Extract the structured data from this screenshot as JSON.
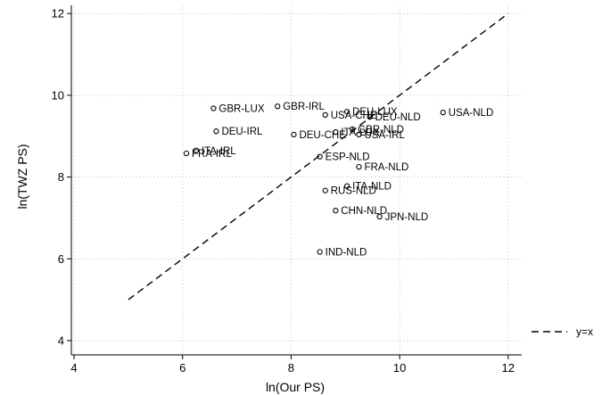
{
  "chart_data": {
    "type": "scatter",
    "title": "",
    "xlabel": "ln(Our PS)",
    "ylabel": "ln(TWZ PS)",
    "xlim": [
      3.95,
      12.25
    ],
    "ylim": [
      3.65,
      12.2
    ],
    "xticks": [
      4,
      6,
      8,
      10,
      12
    ],
    "yticks": [
      4,
      6,
      8,
      10,
      12
    ],
    "xtick_labels": [
      "4",
      "6",
      "8",
      "10",
      "12"
    ],
    "ytick_labels": [
      "4",
      "6",
      "8",
      "10",
      "12"
    ],
    "grid": true,
    "points": [
      {
        "label": "GBR-LUX",
        "x": 6.57,
        "y": 9.68
      },
      {
        "label": "GBR-IRL",
        "x": 7.75,
        "y": 9.73
      },
      {
        "label": "DEU-LUX",
        "x": 9.03,
        "y": 9.6
      },
      {
        "label": "USA-CHE",
        "x": 8.63,
        "y": 9.52
      },
      {
        "label": "DEU-NLD",
        "x": 9.45,
        "y": 9.47
      },
      {
        "label": "USA-NLD",
        "x": 10.8,
        "y": 9.58
      },
      {
        "label": "DEU-IRL",
        "x": 6.62,
        "y": 9.12
      },
      {
        "label": "DEU-CHE",
        "x": 8.05,
        "y": 9.04
      },
      {
        "label": "ITA-LUX",
        "x": 8.82,
        "y": 9.1
      },
      {
        "label": "GBR-NLD",
        "x": 9.13,
        "y": 9.17
      },
      {
        "label": "USA-IRL",
        "x": 9.25,
        "y": 9.04
      },
      {
        "label": "ITA-IRL",
        "x": 6.25,
        "y": 8.65
      },
      {
        "label": "FRA-IRL",
        "x": 6.07,
        "y": 8.58
      },
      {
        "label": "ESP-NLD",
        "x": 8.53,
        "y": 8.5
      },
      {
        "label": "FRA-NLD",
        "x": 9.25,
        "y": 8.25
      },
      {
        "label": "ITA-NLD",
        "x": 9.03,
        "y": 7.78
      },
      {
        "label": "RUS-NLD",
        "x": 8.63,
        "y": 7.67
      },
      {
        "label": "CHN-NLD",
        "x": 8.82,
        "y": 7.18
      },
      {
        "label": "JPN-NLD",
        "x": 9.63,
        "y": 7.03
      },
      {
        "label": "IND-NLD",
        "x": 8.53,
        "y": 6.17
      }
    ],
    "reference_line": {
      "name": "y=x",
      "x": [
        5,
        12
      ],
      "y": [
        5,
        12
      ]
    },
    "legend": {
      "placement": "right",
      "entries": [
        "y=x"
      ]
    }
  }
}
